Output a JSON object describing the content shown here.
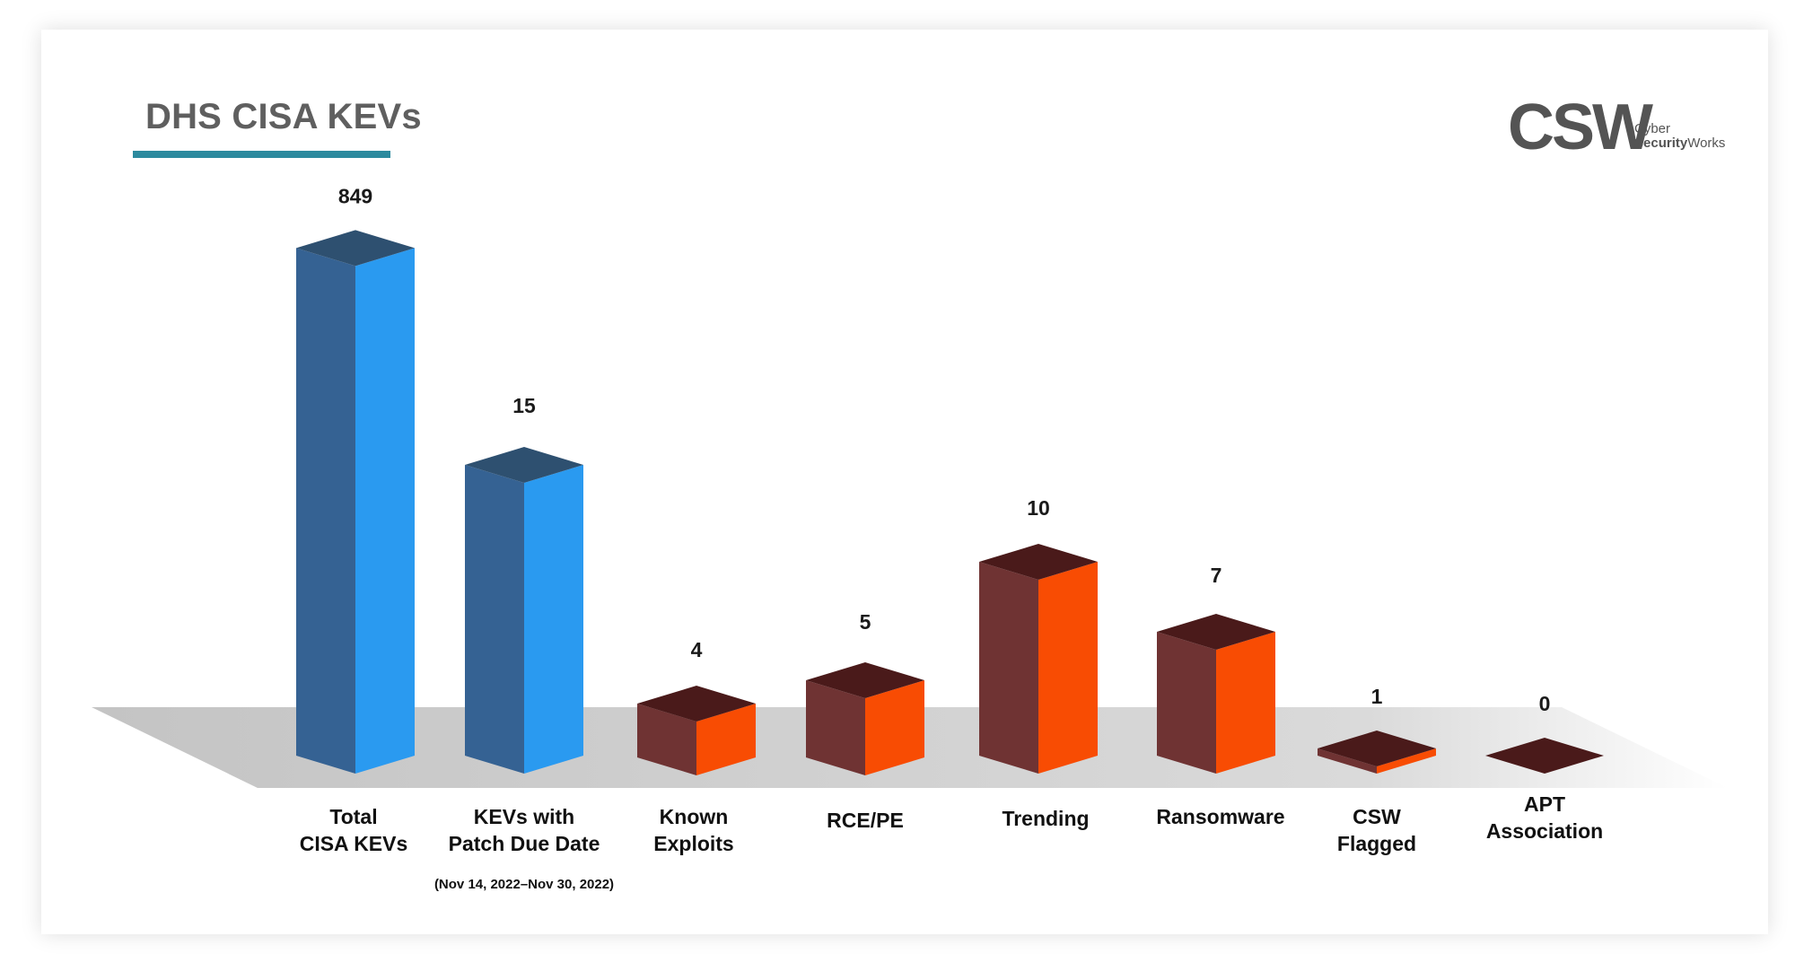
{
  "header": {
    "title": "DHS CISA KEVs"
  },
  "logo": {
    "mark": "CSW",
    "line1": "Cyber",
    "line2_bold": "Security",
    "line2_rest": "Works"
  },
  "chart_data": {
    "type": "bar",
    "title": "DHS CISA KEVs",
    "categories": [
      [
        "Total",
        "CISA KEVs"
      ],
      [
        "KEVs with",
        "Patch Due Date"
      ],
      [
        "Known",
        "Exploits"
      ],
      [
        "RCE/PE"
      ],
      [
        "Trending"
      ],
      [
        "Ransomware"
      ],
      [
        "CSW",
        "Flagged"
      ],
      [
        "APT",
        "Association"
      ]
    ],
    "category_notes": [
      "",
      "(Nov 14, 2022–Nov 30, 2022)",
      "",
      "",
      "",
      "",
      "",
      ""
    ],
    "values": [
      849,
      15,
      4,
      5,
      10,
      7,
      1,
      0
    ],
    "value_labels": [
      "849",
      "15",
      "4",
      "5",
      "10",
      "7",
      "1",
      "0"
    ],
    "scale": "non-linear (illustrative bar heights)",
    "grid": false,
    "legend": "none",
    "colors": {
      "blue_front": "#2a9af0",
      "blue_side": "#356293",
      "blue_top": "#2e5070",
      "orange_front": "#f84c03",
      "orange_side": "#6f3333",
      "orange_top": "#4a1a1a",
      "accent": "#2c8a9e"
    }
  }
}
